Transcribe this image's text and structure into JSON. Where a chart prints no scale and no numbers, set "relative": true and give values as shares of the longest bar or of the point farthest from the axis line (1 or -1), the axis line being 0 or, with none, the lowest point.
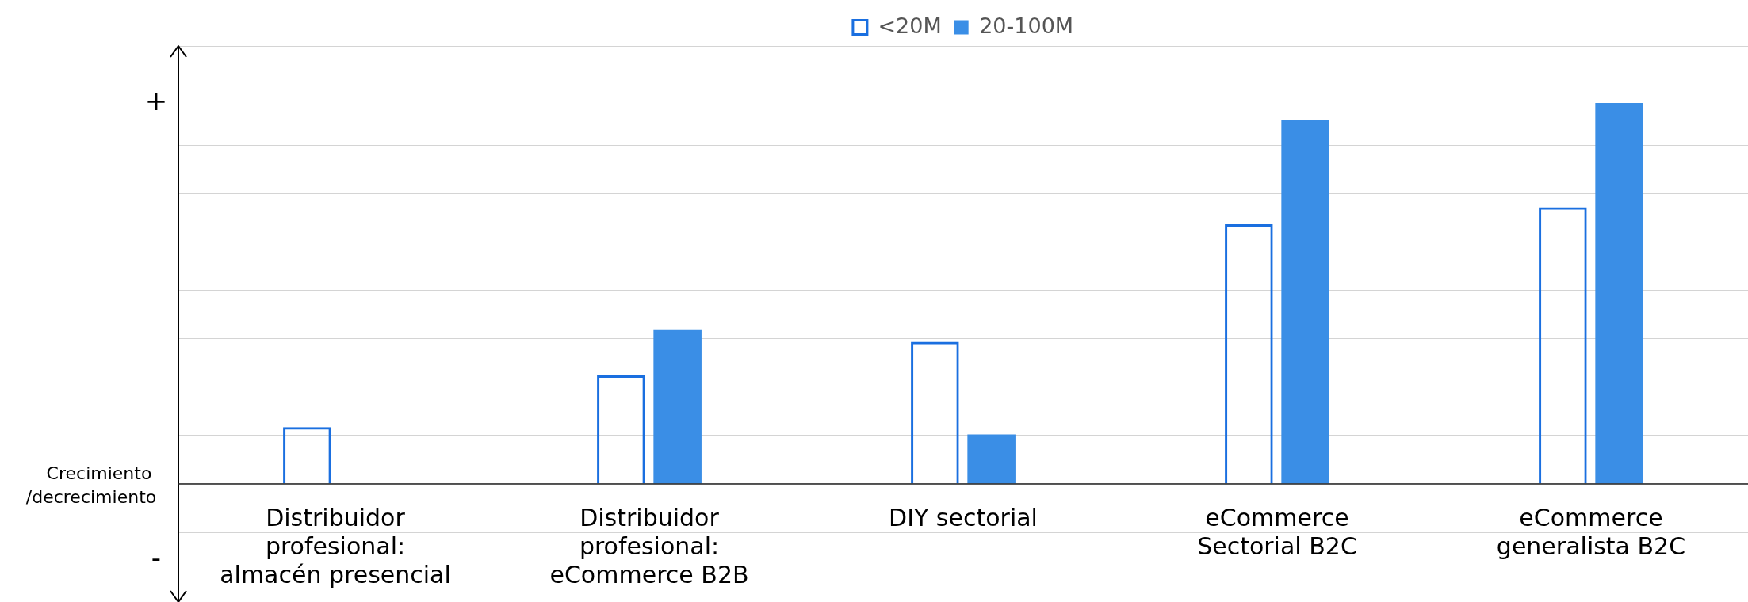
{
  "chart_data": {
    "type": "bar",
    "relative": true,
    "ylabel": "Crecimiento /decrecimiento",
    "categories": [
      "Distribuidor profesional: almacén presencial",
      "Distribuidor profesional: eCommerce B2B",
      "DIY sectorial",
      "eCommerce Sectorial B2C",
      "eCommerce generalista B2C"
    ],
    "series": [
      {
        "name": "<20M",
        "color": "#1a6fe0",
        "values": [
          0.149,
          0.285,
          0.373,
          0.682,
          0.727
        ]
      },
      {
        "name": "20-100M",
        "color": "#3a8ee6",
        "values": [
          null,
          0.406,
          0.13,
          0.956,
          1
        ]
      }
    ],
    "annotations": [
      "+",
      "-"
    ],
    "grid": "y",
    "legend": "top"
  }
}
